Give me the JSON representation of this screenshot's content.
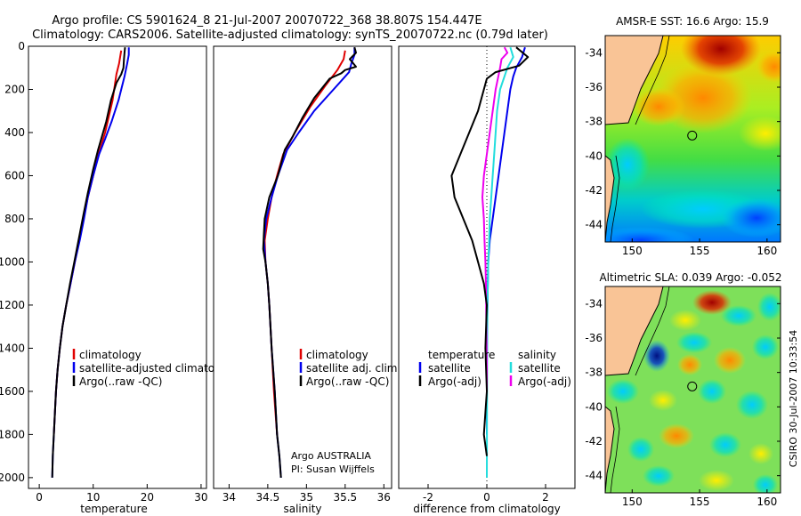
{
  "title_line1": "Argo profile: CS 5901624_8 21-Jul-2007 20070722_368 38.807S 154.447E",
  "title_line2": "Climatology: CARS2006. Satellite-adjusted climatology: synTS_20070722.nc (0.79d later)",
  "side_stamp": "CSIRO 30-Jul-2007 10:33:54",
  "colors": {
    "red": "#e00000",
    "blue": "#0000ee",
    "black": "#000000",
    "cyan": "#22dddd",
    "magenta": "#ee00ee",
    "land": "#f9c496"
  },
  "chart_data": [
    {
      "type": "line",
      "xlabel": "temperature",
      "xlim": [
        -2,
        31
      ],
      "ylim": [
        0,
        2050
      ],
      "xticks": [
        "0",
        "10",
        "20",
        "30"
      ],
      "yticks": [
        "0",
        "200",
        "400",
        "600",
        "800",
        "1000",
        "1200",
        "1400",
        "1600",
        "1800",
        "2000"
      ],
      "legend": [
        "climatology",
        "satellite-adjusted climatology",
        "Argo(..raw -QC)"
      ],
      "series": [
        {
          "color": "red",
          "points": [
            [
              15.2,
              20
            ],
            [
              14.8,
              80
            ],
            [
              14.3,
              130
            ],
            [
              13.6,
              250
            ],
            [
              12.2,
              400
            ],
            [
              11,
              500
            ],
            [
              10,
              600
            ],
            [
              9,
              700
            ],
            [
              8.2,
              800
            ],
            [
              7.4,
              900
            ],
            [
              6.6,
              1000
            ],
            [
              5.8,
              1100
            ],
            [
              5,
              1200
            ],
            [
              4.3,
              1300
            ],
            [
              3.8,
              1400
            ],
            [
              3.4,
              1500
            ],
            [
              3.1,
              1600
            ],
            [
              2.9,
              1700
            ],
            [
              2.7,
              1800
            ]
          ]
        },
        {
          "color": "blue",
          "points": [
            [
              16.6,
              5
            ],
            [
              16.6,
              40
            ],
            [
              16.3,
              80
            ],
            [
              15.8,
              140
            ],
            [
              14.7,
              250
            ],
            [
              13.4,
              350
            ],
            [
              12.2,
              430
            ],
            [
              11.1,
              500
            ],
            [
              10,
              600
            ],
            [
              9,
              700
            ],
            [
              8.3,
              800
            ],
            [
              7.5,
              900
            ],
            [
              6.6,
              1000
            ],
            [
              5.8,
              1100
            ],
            [
              5,
              1200
            ],
            [
              4.3,
              1300
            ],
            [
              3.8,
              1400
            ],
            [
              3.4,
              1500
            ],
            [
              3.1,
              1600
            ],
            [
              2.9,
              1700
            ],
            [
              2.7,
              1800
            ],
            [
              2.5,
              1900
            ],
            [
              2.4,
              2000
            ]
          ]
        },
        {
          "color": "black",
          "points": [
            [
              15.9,
              5
            ],
            [
              15.8,
              30
            ],
            [
              15.7,
              60
            ],
            [
              15.6,
              100
            ],
            [
              15.2,
              130
            ],
            [
              14.3,
              170
            ],
            [
              13.3,
              250
            ],
            [
              12.4,
              350
            ],
            [
              11.6,
              420
            ],
            [
              10.9,
              480
            ],
            [
              10,
              570
            ],
            [
              9,
              680
            ],
            [
              8.2,
              780
            ],
            [
              7.5,
              870
            ],
            [
              6.5,
              1000
            ],
            [
              5.7,
              1100
            ],
            [
              5,
              1200
            ],
            [
              4.3,
              1300
            ],
            [
              3.8,
              1400
            ],
            [
              3.4,
              1500
            ],
            [
              3.1,
              1600
            ],
            [
              2.9,
              1700
            ],
            [
              2.7,
              1800
            ],
            [
              2.5,
              1900
            ],
            [
              2.4,
              2000
            ]
          ]
        }
      ]
    },
    {
      "type": "line",
      "xlabel": "salinity",
      "xlim": [
        33.8,
        36.1
      ],
      "ylim": [
        0,
        2050
      ],
      "xticks": [
        "34",
        "34.5",
        "35",
        "35.5",
        "36"
      ],
      "legend": [
        "climatology",
        "satellite adj. clim.",
        "Argo(..raw -QC)"
      ],
      "annotation": [
        "Argo AUSTRALIA",
        "PI: Susan Wijffels"
      ],
      "series": [
        {
          "color": "red",
          "points": [
            [
              35.5,
              20
            ],
            [
              35.48,
              60
            ],
            [
              35.4,
              110
            ],
            [
              35.25,
              180
            ],
            [
              35.05,
              280
            ],
            [
              34.85,
              400
            ],
            [
              34.7,
              500
            ],
            [
              34.62,
              600
            ],
            [
              34.55,
              700
            ],
            [
              34.5,
              800
            ],
            [
              34.46,
              900
            ],
            [
              34.47,
              1000
            ],
            [
              34.5,
              1100
            ],
            [
              34.52,
              1200
            ],
            [
              34.55,
              1400
            ],
            [
              34.58,
              1600
            ],
            [
              34.62,
              1800
            ]
          ]
        },
        {
          "color": "blue",
          "points": [
            [
              35.62,
              5
            ],
            [
              35.62,
              40
            ],
            [
              35.58,
              80
            ],
            [
              35.55,
              120
            ],
            [
              35.35,
              200
            ],
            [
              35.1,
              300
            ],
            [
              34.9,
              400
            ],
            [
              34.75,
              480
            ],
            [
              34.63,
              600
            ],
            [
              34.55,
              700
            ],
            [
              34.48,
              800
            ],
            [
              34.45,
              900
            ],
            [
              34.47,
              1000
            ],
            [
              34.5,
              1100
            ],
            [
              34.52,
              1200
            ],
            [
              34.55,
              1400
            ],
            [
              34.59,
              1600
            ],
            [
              34.62,
              1800
            ],
            [
              34.65,
              1900
            ],
            [
              34.67,
              2000
            ]
          ]
        },
        {
          "color": "black",
          "points": [
            [
              35.62,
              5
            ],
            [
              35.64,
              30
            ],
            [
              35.56,
              60
            ],
            [
              35.64,
              95
            ],
            [
              35.5,
              110
            ],
            [
              35.45,
              125
            ],
            [
              35.3,
              150
            ],
            [
              35.1,
              240
            ],
            [
              34.95,
              330
            ],
            [
              34.82,
              420
            ],
            [
              34.72,
              480
            ],
            [
              34.63,
              600
            ],
            [
              34.52,
              700
            ],
            [
              34.46,
              800
            ],
            [
              34.45,
              870
            ],
            [
              34.44,
              940
            ],
            [
              34.47,
              1000
            ],
            [
              34.5,
              1100
            ],
            [
              34.52,
              1200
            ],
            [
              34.55,
              1400
            ],
            [
              34.59,
              1600
            ],
            [
              34.62,
              1800
            ],
            [
              34.65,
              1900
            ],
            [
              34.67,
              2000
            ]
          ]
        }
      ]
    },
    {
      "type": "line",
      "xlabel": "difference from climatology",
      "xlim": [
        -3,
        3
      ],
      "ylim": [
        0,
        2050
      ],
      "xticks": [
        "-2",
        "0",
        "2"
      ],
      "legend_temperature_title": "temperature",
      "legend_salinity_title": "salinity",
      "legend": [
        "satellite",
        "Argo(-adj)",
        "satellite",
        "Argo(-adj)"
      ],
      "series": [
        {
          "color": "blue",
          "points": [
            [
              1.3,
              5
            ],
            [
              1.2,
              50
            ],
            [
              1.0,
              100
            ],
            [
              0.9,
              140
            ],
            [
              0.8,
              200
            ],
            [
              0.7,
              300
            ],
            [
              0.6,
              400
            ],
            [
              0.5,
              500
            ],
            [
              0.4,
              600
            ],
            [
              0.3,
              700
            ],
            [
              0.2,
              800
            ],
            [
              0.1,
              900
            ],
            [
              0.05,
              1000
            ],
            [
              0.02,
              1200
            ],
            [
              0,
              1400
            ],
            [
              0,
              1800
            ]
          ]
        },
        {
          "color": "cyan",
          "points": [
            [
              0.8,
              5
            ],
            [
              0.9,
              50
            ],
            [
              0.7,
              100
            ],
            [
              0.45,
              200
            ],
            [
              0.35,
              300
            ],
            [
              0.3,
              400
            ],
            [
              0.25,
              500
            ],
            [
              0.2,
              600
            ],
            [
              0.15,
              700
            ],
            [
              0.1,
              800
            ],
            [
              0.08,
              900
            ],
            [
              0.05,
              1000
            ],
            [
              0.02,
              1200
            ],
            [
              0.01,
              1500
            ],
            [
              0,
              2000
            ]
          ]
        },
        {
          "color": "magenta",
          "points": [
            [
              0.6,
              5
            ],
            [
              0.7,
              30
            ],
            [
              0.5,
              60
            ],
            [
              0.45,
              100
            ],
            [
              0.3,
              200
            ],
            [
              0.2,
              300
            ],
            [
              0.1,
              400
            ],
            [
              0,
              500
            ],
            [
              -0.1,
              600
            ],
            [
              -0.15,
              700
            ],
            [
              -0.1,
              800
            ],
            [
              -0.08,
              900
            ],
            [
              -0.05,
              1000
            ],
            [
              -0.03,
              1100
            ],
            [
              0,
              1500
            ],
            [
              0,
              1600
            ]
          ]
        },
        {
          "color": "black",
          "points": [
            [
              1.0,
              5
            ],
            [
              1.4,
              50
            ],
            [
              1.1,
              90
            ],
            [
              0.3,
              120
            ],
            [
              0,
              150
            ],
            [
              -0.1,
              200
            ],
            [
              -0.3,
              300
            ],
            [
              -0.6,
              400
            ],
            [
              -0.9,
              500
            ],
            [
              -1.2,
              600
            ],
            [
              -1.1,
              700
            ],
            [
              -0.8,
              800
            ],
            [
              -0.5,
              900
            ],
            [
              -0.3,
              1000
            ],
            [
              -0.1,
              1100
            ],
            [
              0,
              1200
            ],
            [
              -0.05,
              1400
            ],
            [
              0,
              1600
            ],
            [
              -0.1,
              1800
            ],
            [
              0,
              1900
            ]
          ]
        }
      ]
    },
    {
      "type": "heatmap",
      "title": "AMSR-E SST: 16.6 Argo: 15.9",
      "xlim": [
        148,
        161
      ],
      "ylim": [
        -45,
        -33
      ],
      "xticks": [
        "150",
        "155",
        "160"
      ],
      "yticks": [
        "-34",
        "-36",
        "-38",
        "-40",
        "-42",
        "-44"
      ],
      "float_position": [
        154.45,
        -38.81
      ]
    },
    {
      "type": "heatmap",
      "title": "Altimetric SLA: 0.039 Argo: -0.052",
      "xlim": [
        148,
        161
      ],
      "ylim": [
        -45,
        -33
      ],
      "xticks": [
        "150",
        "155",
        "160"
      ],
      "yticks": [
        "-34",
        "-36",
        "-38",
        "-40",
        "-42",
        "-44"
      ],
      "float_position": [
        154.45,
        -38.81
      ]
    }
  ]
}
